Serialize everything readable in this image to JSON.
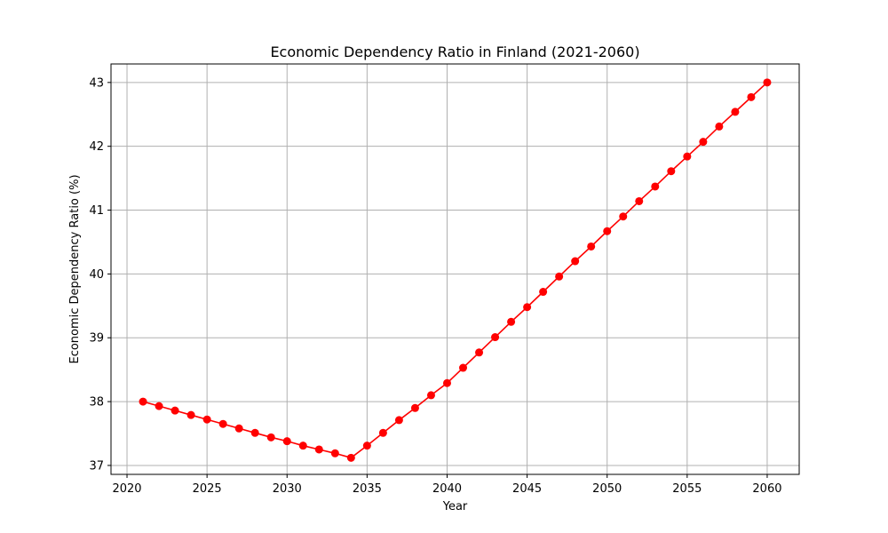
{
  "chart_data": {
    "type": "line",
    "title": "Economic Dependency Ratio in Finland (2021-2060)",
    "xlabel": "Year",
    "ylabel": "Economic Dependency Ratio (%)",
    "xlim": [
      2019,
      2062
    ],
    "ylim": [
      36.86,
      43.29
    ],
    "xticks": [
      2020,
      2025,
      2030,
      2035,
      2040,
      2045,
      2050,
      2055,
      2060
    ],
    "yticks": [
      37,
      38,
      39,
      40,
      41,
      42,
      43
    ],
    "grid": true,
    "series": [
      {
        "color": "#ff0000",
        "marker": "circle",
        "x": [
          2021,
          2022,
          2023,
          2024,
          2025,
          2026,
          2027,
          2028,
          2029,
          2030,
          2031,
          2032,
          2033,
          2034,
          2035,
          2036,
          2037,
          2038,
          2039,
          2040,
          2041,
          2042,
          2043,
          2044,
          2045,
          2046,
          2047,
          2048,
          2049,
          2050,
          2051,
          2052,
          2053,
          2054,
          2055,
          2056,
          2057,
          2058,
          2059,
          2060
        ],
        "values": [
          38.0,
          37.93,
          37.86,
          37.79,
          37.72,
          37.65,
          37.58,
          37.51,
          37.44,
          37.38,
          37.31,
          37.25,
          37.19,
          37.12,
          37.31,
          37.51,
          37.71,
          37.9,
          38.1,
          38.29,
          38.53,
          38.77,
          39.01,
          39.25,
          39.48,
          39.72,
          39.96,
          40.2,
          40.43,
          40.67,
          40.9,
          41.14,
          41.37,
          41.61,
          41.84,
          42.07,
          42.31,
          42.54,
          42.77,
          43.0
        ]
      }
    ]
  }
}
